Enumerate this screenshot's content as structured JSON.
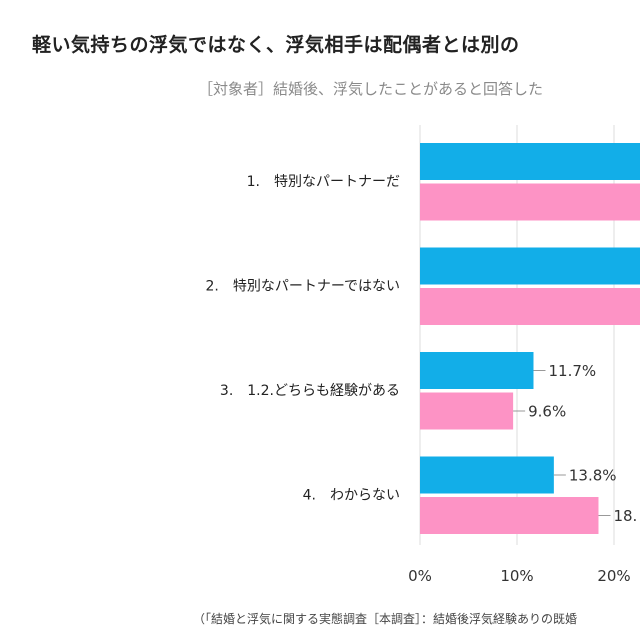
{
  "chart_data": {
    "type": "bar",
    "orientation": "horizontal",
    "title": "軽い気持ちの浮気ではなく、浮気相手は配偶者とは別の",
    "subtitle": "［対象者］結婚後、浮気したことがあると回答した",
    "footer": "（「結婚と浮気に関する実態調査［本調査］：結婚後浮気経験ありの既婚",
    "categories": [
      "1.　特別なパートナーだ",
      "2.　特別なパートナーではない",
      "3.　1.2.どちらも経験がある",
      "4.　わからない"
    ],
    "series": [
      {
        "color": "#12aee8",
        "values": [
          null,
          null,
          11.7,
          13.8
        ],
        "labels": [
          "",
          "",
          "11.7%",
          "13.8%"
        ]
      },
      {
        "color": "#fd93c5",
        "values": [
          null,
          null,
          9.6,
          18.4
        ],
        "labels": [
          "",
          "",
          "9.6%",
          "18."
        ]
      }
    ],
    "x_ticks": [
      "0%",
      "10%",
      "20%"
    ],
    "xlim": [
      0,
      22.6
    ],
    "grid": true,
    "note": ""
  }
}
